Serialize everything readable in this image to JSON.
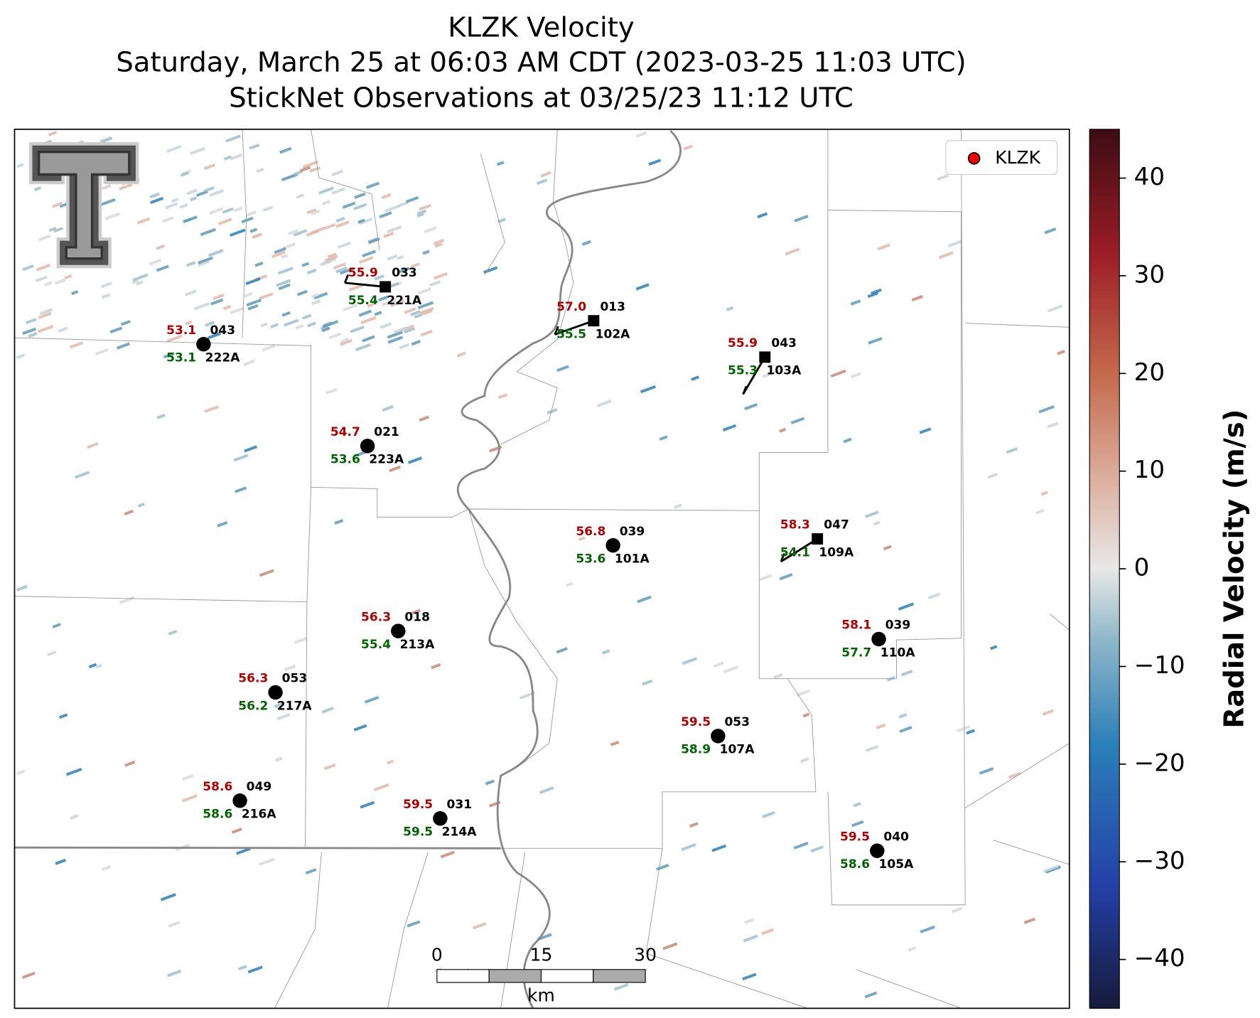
{
  "title": [
    "KLZK Velocity",
    "Saturday, March 25 at 06:03 AM CDT (2023-03-25 11:03 UTC)",
    "StickNet Observations at 03/25/23 11:12 UTC"
  ],
  "legend": [
    "KLZK"
  ],
  "stations": [
    {
      "id": "221A",
      "temperature": "55.9",
      "wind_direction": "033",
      "dewpoint": "55.4"
    },
    {
      "id": "222A",
      "temperature": "53.1",
      "wind_direction": "043",
      "dewpoint": "53.1"
    },
    {
      "id": "102A",
      "temperature": "57.0",
      "wind_direction": "013",
      "dewpoint": "55.5"
    },
    {
      "id": "103A",
      "temperature": "55.9",
      "wind_direction": "043",
      "dewpoint": "55.3"
    },
    {
      "id": "223A",
      "temperature": "54.7",
      "wind_direction": "021",
      "dewpoint": "53.6"
    },
    {
      "id": "101A",
      "temperature": "56.8",
      "wind_direction": "039",
      "dewpoint": "53.6"
    },
    {
      "id": "109A",
      "temperature": "58.3",
      "wind_direction": "047",
      "dewpoint": "54.1"
    },
    {
      "id": "213A",
      "temperature": "56.3",
      "wind_direction": "018",
      "dewpoint": "55.4"
    },
    {
      "id": "110A",
      "temperature": "58.1",
      "wind_direction": "039",
      "dewpoint": "57.7"
    },
    {
      "id": "217A",
      "temperature": "56.3",
      "wind_direction": "053",
      "dewpoint": "56.2"
    },
    {
      "id": "107A",
      "temperature": "59.5",
      "wind_direction": "053",
      "dewpoint": "58.9"
    },
    {
      "id": "216A",
      "temperature": "58.6",
      "wind_direction": "049",
      "dewpoint": "58.6"
    },
    {
      "id": "214A",
      "temperature": "59.5",
      "wind_direction": "031",
      "dewpoint": "59.5"
    },
    {
      "id": "105A",
      "temperature": "59.5",
      "wind_direction": "040",
      "dewpoint": "58.6"
    }
  ],
  "scale_bar": {
    "ticks": [
      0,
      15,
      30
    ],
    "unit": "km"
  },
  "colorbar": {
    "label": "Radial Velocity (m/s)",
    "lim": [
      -45,
      45
    ],
    "ticks": [
      {
        "value": -40,
        "label": "−40"
      },
      {
        "value": -30,
        "label": "−30"
      },
      {
        "value": -20,
        "label": "−20"
      },
      {
        "value": -10,
        "label": "−10"
      },
      0,
      10,
      20,
      30,
      40
    ]
  }
}
